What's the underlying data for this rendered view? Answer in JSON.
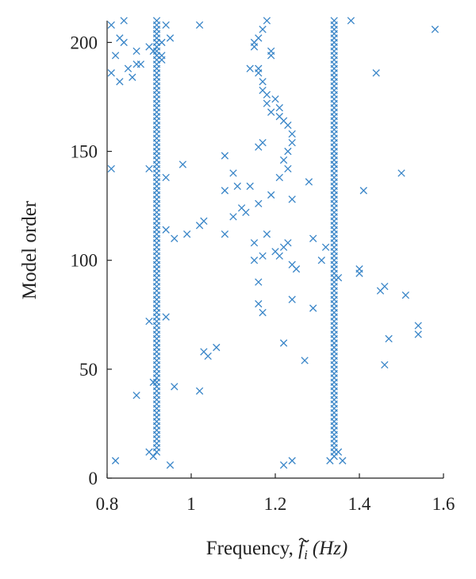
{
  "chart_data": {
    "type": "scatter",
    "marker": "x",
    "marker_color": "#3a86c8",
    "xlabel_prefix": "Frequency, ",
    "xlabel_symbol": "f",
    "xlabel_subscript": "i",
    "xlabel_unit": "(Hz)",
    "ylabel": "Model order",
    "xlim": [
      0.8,
      1.6
    ],
    "ylim": [
      0,
      210
    ],
    "xticks": [
      0.8,
      1.0,
      1.2,
      1.4,
      1.6
    ],
    "xtick_labels": [
      "0.8",
      "1",
      "1.2",
      "1.4",
      "1.6"
    ],
    "yticks": [
      0,
      50,
      100,
      150,
      200
    ],
    "ytick_labels": [
      "0",
      "50",
      "100",
      "150",
      "200"
    ],
    "grid": false,
    "stable_columns": [
      {
        "x": 0.918,
        "y_from": 12,
        "y_to": 210,
        "step": 2
      },
      {
        "x": 1.34,
        "y_from": 10,
        "y_to": 210,
        "step": 2
      }
    ],
    "points": [
      [
        0.81,
        208
      ],
      [
        0.82,
        194
      ],
      [
        0.83,
        202
      ],
      [
        0.84,
        210
      ],
      [
        0.81,
        186
      ],
      [
        0.84,
        200
      ],
      [
        0.85,
        188
      ],
      [
        0.86,
        184
      ],
      [
        0.87,
        190
      ],
      [
        0.88,
        190
      ],
      [
        0.83,
        182
      ],
      [
        0.87,
        196
      ],
      [
        0.81,
        142
      ],
      [
        0.82,
        8
      ],
      [
        0.9,
        12
      ],
      [
        0.9,
        72
      ],
      [
        0.87,
        38
      ],
      [
        0.9,
        142
      ],
      [
        0.9,
        198
      ],
      [
        0.91,
        196
      ],
      [
        0.91,
        44
      ],
      [
        0.91,
        10
      ],
      [
        0.93,
        200
      ],
      [
        0.93,
        192
      ],
      [
        0.93,
        194
      ],
      [
        0.94,
        208
      ],
      [
        0.94,
        138
      ],
      [
        0.94,
        114
      ],
      [
        0.95,
        202
      ],
      [
        0.96,
        110
      ],
      [
        0.94,
        74
      ],
      [
        0.95,
        6
      ],
      [
        0.96,
        42
      ],
      [
        0.98,
        144
      ],
      [
        0.99,
        112
      ],
      [
        1.02,
        208
      ],
      [
        1.02,
        40
      ],
      [
        1.02,
        116
      ],
      [
        1.03,
        118
      ],
      [
        1.03,
        58
      ],
      [
        1.04,
        56
      ],
      [
        1.06,
        60
      ],
      [
        1.08,
        148
      ],
      [
        1.08,
        132
      ],
      [
        1.08,
        112
      ],
      [
        1.1,
        140
      ],
      [
        1.1,
        120
      ],
      [
        1.11,
        134
      ],
      [
        1.12,
        124
      ],
      [
        1.13,
        122
      ],
      [
        1.14,
        134
      ],
      [
        1.15,
        100
      ],
      [
        1.15,
        108
      ],
      [
        1.16,
        152
      ],
      [
        1.16,
        188
      ],
      [
        1.15,
        198
      ],
      [
        1.16,
        202
      ],
      [
        1.17,
        206
      ],
      [
        1.16,
        186
      ],
      [
        1.17,
        182
      ],
      [
        1.17,
        178
      ],
      [
        1.18,
        176
      ],
      [
        1.18,
        172
      ],
      [
        1.19,
        168
      ],
      [
        1.19,
        196
      ],
      [
        1.18,
        210
      ],
      [
        1.19,
        194
      ],
      [
        1.2,
        174
      ],
      [
        1.21,
        170
      ],
      [
        1.21,
        166
      ],
      [
        1.22,
        164
      ],
      [
        1.23,
        162
      ],
      [
        1.24,
        158
      ],
      [
        1.24,
        154
      ],
      [
        1.23,
        150
      ],
      [
        1.22,
        146
      ],
      [
        1.23,
        142
      ],
      [
        1.21,
        138
      ],
      [
        1.2,
        104
      ],
      [
        1.21,
        102
      ],
      [
        1.22,
        106
      ],
      [
        1.23,
        108
      ],
      [
        1.24,
        98
      ],
      [
        1.25,
        96
      ],
      [
        1.19,
        130
      ],
      [
        1.18,
        112
      ],
      [
        1.17,
        102
      ],
      [
        1.16,
        90
      ],
      [
        1.16,
        80
      ],
      [
        1.17,
        76
      ],
      [
        1.16,
        126
      ],
      [
        1.17,
        154
      ],
      [
        1.22,
        62
      ],
      [
        1.24,
        82
      ],
      [
        1.24,
        128
      ],
      [
        1.27,
        54
      ],
      [
        1.28,
        136
      ],
      [
        1.29,
        110
      ],
      [
        1.29,
        78
      ],
      [
        1.31,
        100
      ],
      [
        1.32,
        106
      ],
      [
        1.34,
        144
      ],
      [
        1.35,
        92
      ],
      [
        1.33,
        8
      ],
      [
        1.35,
        12
      ],
      [
        1.36,
        8
      ],
      [
        1.38,
        210
      ],
      [
        1.4,
        96
      ],
      [
        1.4,
        94
      ],
      [
        1.41,
        132
      ],
      [
        1.44,
        186
      ],
      [
        1.45,
        86
      ],
      [
        1.46,
        88
      ],
      [
        1.46,
        52
      ],
      [
        1.47,
        64
      ],
      [
        1.5,
        140
      ],
      [
        1.51,
        84
      ],
      [
        1.54,
        70
      ],
      [
        1.54,
        66
      ],
      [
        1.58,
        206
      ],
      [
        1.22,
        6
      ],
      [
        1.24,
        8
      ],
      [
        1.14,
        188
      ],
      [
        1.15,
        200
      ]
    ]
  }
}
